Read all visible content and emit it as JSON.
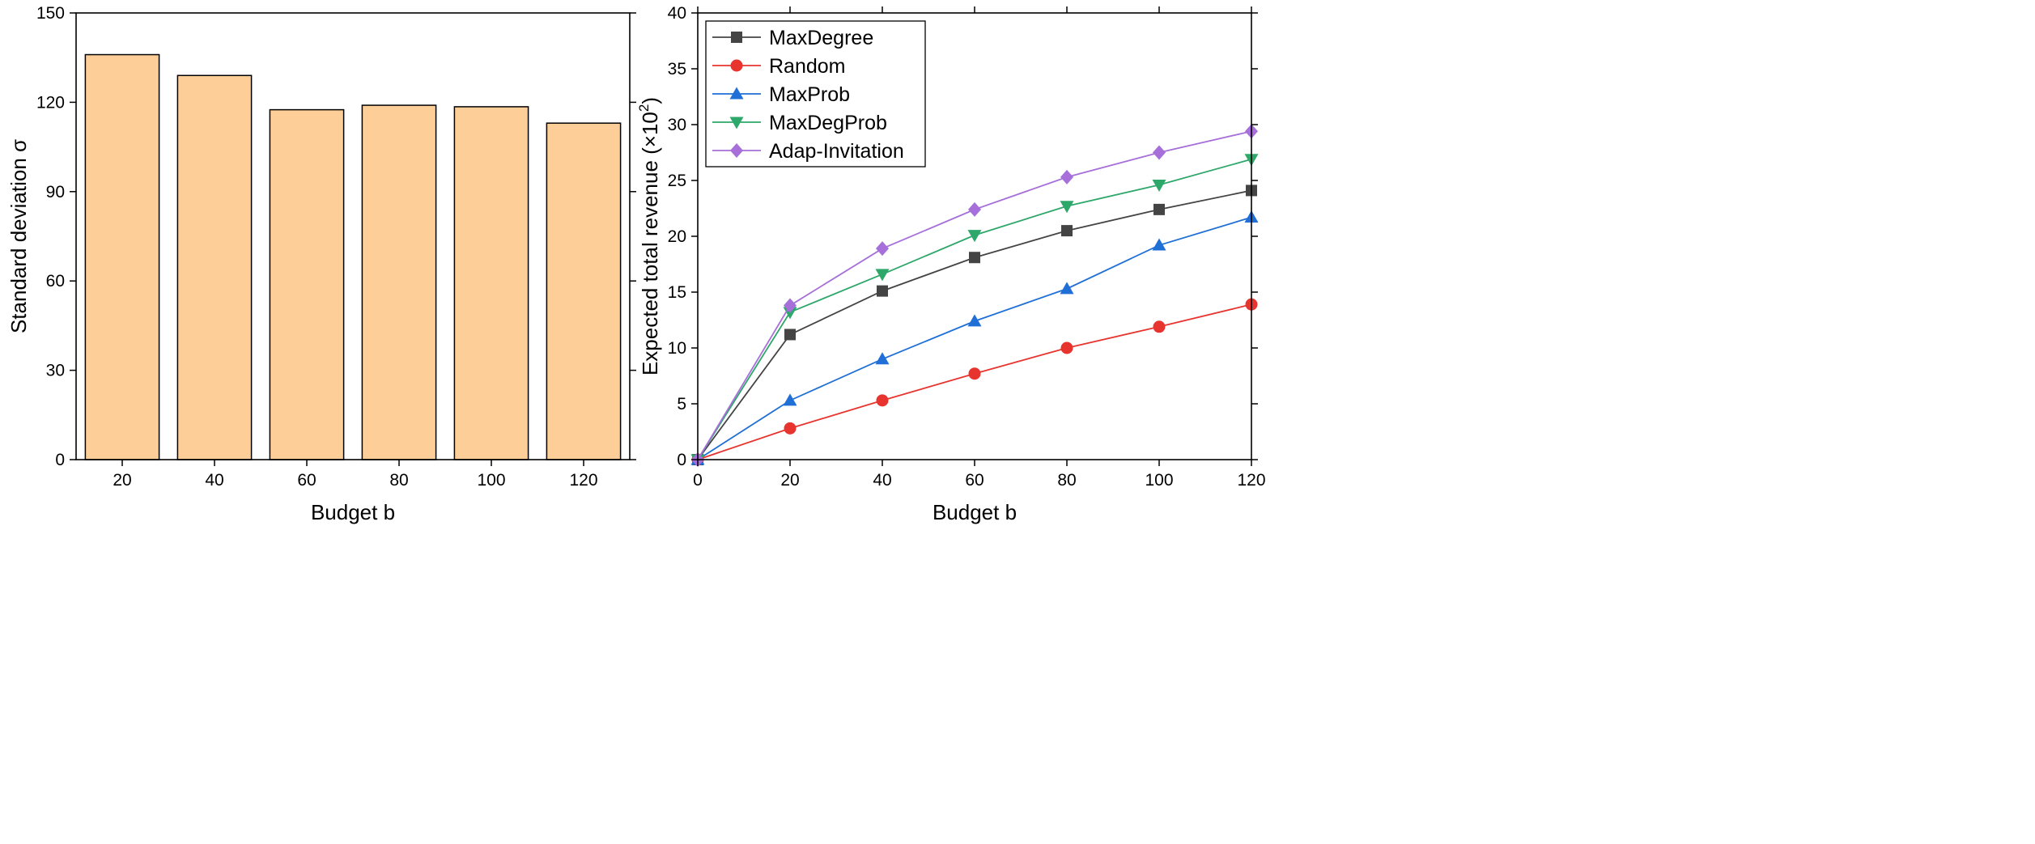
{
  "chart_data": [
    {
      "type": "bar",
      "categories": [
        "20",
        "40",
        "60",
        "80",
        "100",
        "120"
      ],
      "values": [
        136,
        129,
        117.5,
        119,
        118.5,
        113
      ],
      "xlabel": "Budget b",
      "ylabel": "Standard deviation σ",
      "ylim": [
        0,
        150
      ],
      "yticks": [
        0,
        30,
        60,
        90,
        120,
        150
      ],
      "bar_color": "#FDCE98",
      "edge_color": "#000000",
      "grid": false
    },
    {
      "type": "line",
      "x": [
        0,
        20,
        40,
        60,
        80,
        100,
        120
      ],
      "xticks": [
        0,
        20,
        40,
        60,
        80,
        100,
        120
      ],
      "xlim": [
        0,
        120
      ],
      "ylim": [
        0,
        40
      ],
      "yticks": [
        0,
        5,
        10,
        15,
        20,
        25,
        30,
        35,
        40
      ],
      "xlabel": "Budget b",
      "ylabel_main": "Expected total revenue (×10",
      "ylabel_sup": "2",
      "ylabel_end": ")",
      "legend_position": "top-left",
      "grid": false,
      "series": [
        {
          "name": "MaxDegree",
          "values": [
            0,
            11.2,
            15.1,
            18.1,
            20.5,
            22.4,
            24.1
          ],
          "color": "#444444",
          "marker": "square"
        },
        {
          "name": "Random",
          "values": [
            0,
            2.8,
            5.3,
            7.7,
            10.0,
            11.9,
            13.9
          ],
          "color": "#E8342E",
          "marker": "circle"
        },
        {
          "name": "MaxProb",
          "values": [
            0,
            5.3,
            9.0,
            12.4,
            15.3,
            19.2,
            21.7
          ],
          "color": "#1F6FD6",
          "marker": "triangle-up"
        },
        {
          "name": "MaxDegProb",
          "values": [
            0,
            13.2,
            16.6,
            20.1,
            22.7,
            24.6,
            26.9
          ],
          "color": "#2EA76A",
          "marker": "triangle-down"
        },
        {
          "name": "Adap-Invitation",
          "values": [
            0,
            13.8,
            18.9,
            22.4,
            25.3,
            27.5,
            29.4
          ],
          "color": "#A66FD9",
          "marker": "diamond"
        }
      ]
    }
  ]
}
